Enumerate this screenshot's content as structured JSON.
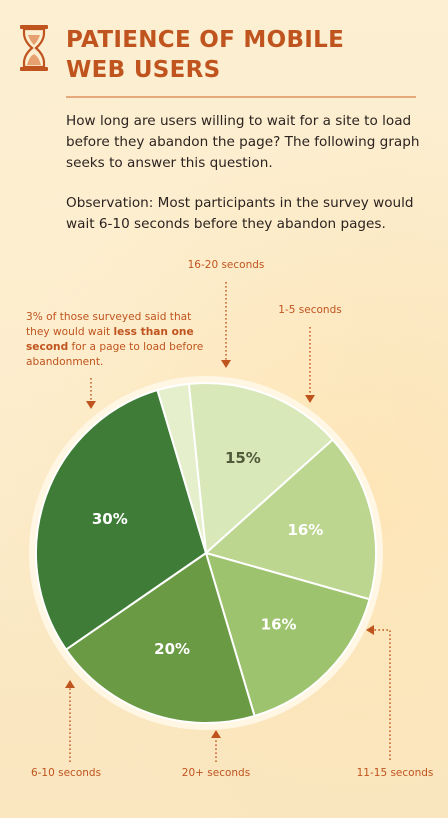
{
  "header": {
    "title_line1": "PATIENCE OF MOBILE",
    "title_line2": "WEB USERS",
    "icon": "hourglass-icon"
  },
  "intro": {
    "question": "How long are users willing to wait for a site to load before they abandon the page? The following graph seeks to answer this question.",
    "observation": "Observation: Most participants in the survey would wait 6-10 seconds before they abandon pages."
  },
  "annotation": {
    "part1": "3% of those surveyed said that they would wait ",
    "bold": "less than one second",
    "part2": " for a page to load before abandonment."
  },
  "colors": {
    "accent": "#c0541f",
    "text": "#2b2320",
    "background": "#fbeccb"
  },
  "chart_data": {
    "type": "pie",
    "unit": "%",
    "slices": [
      {
        "category": "16-20 seconds",
        "value": 15,
        "label": "15%",
        "color": "#d9e8b8",
        "label_color": "#4e5a3a"
      },
      {
        "category": "1-5 seconds",
        "value": 16,
        "label": "16%",
        "color": "#bcd690",
        "label_color": "#ffffff"
      },
      {
        "category": "11-15 seconds",
        "value": 16,
        "label": "16%",
        "color": "#9dc36e",
        "label_color": "#ffffff"
      },
      {
        "category": "20+ seconds",
        "value": 20,
        "label": "20%",
        "color": "#6b9a45",
        "label_color": "#ffffff"
      },
      {
        "category": "6-10 seconds",
        "value": 30,
        "label": "30%",
        "color": "#3e7c37",
        "label_color": "#ffffff"
      },
      {
        "category": "less than one second",
        "value": 3,
        "label": "",
        "color": "#e5efcc",
        "label_color": "#ffffff"
      }
    ]
  }
}
